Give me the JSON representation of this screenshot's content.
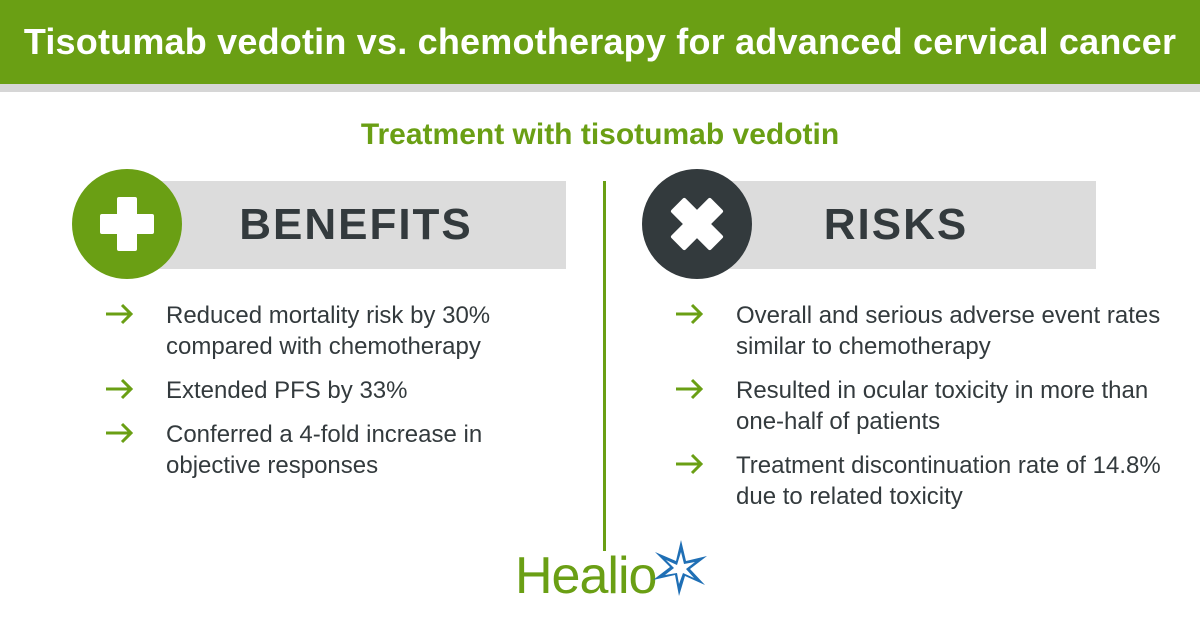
{
  "header": {
    "title": "Tisotumab vedotin vs. chemotherapy for advanced cervical cancer"
  },
  "subtitle": "Treatment with tisotumab vedotin",
  "benefits": {
    "label": "BENEFITS",
    "icon": "plus-icon",
    "items": [
      "Reduced mortality risk by 30% compared with chemotherapy",
      "Extended PFS by 33%",
      "Conferred a 4-fold increase in objective responses"
    ]
  },
  "risks": {
    "label": "RISKS",
    "icon": "cross-icon",
    "items": [
      "Overall and serious adverse event rates similar to chemotherapy",
      "Resulted in ocular toxicity in more than one-half of patients",
      "Treatment discontinuation rate of 14.8% due to related toxicity"
    ]
  },
  "logo": {
    "text": "Healio"
  },
  "colors": {
    "brand_green": "#6a9f14",
    "dark_gray": "#333a3d",
    "light_gray": "#dcdcdc",
    "star_blue": "#1f6fb5"
  }
}
